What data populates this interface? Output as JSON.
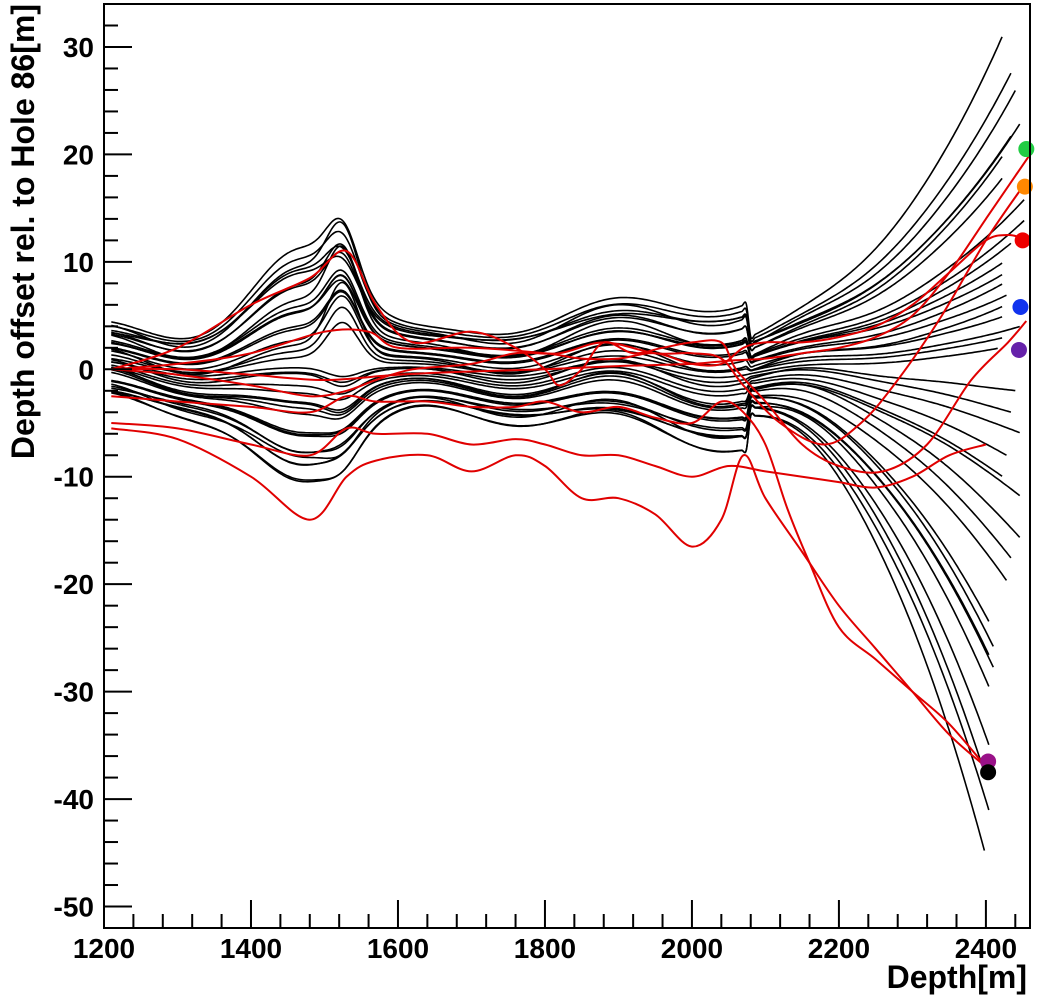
{
  "chart_data": {
    "type": "line",
    "title": "",
    "xlabel": "Depth[m]",
    "ylabel": "Depth offset rel. to Hole 86[m]",
    "xlim": [
      1200,
      2460
    ],
    "ylim": [
      -52,
      34
    ],
    "x_ticks": [
      1200,
      1400,
      1600,
      1800,
      2000,
      2200,
      2400
    ],
    "x_tick_labels": [
      "1200",
      "1400",
      "1600",
      "1800",
      "2000",
      "2200",
      "2400"
    ],
    "y_ticks": [
      30,
      20,
      10,
      0,
      -10,
      -20,
      -30,
      -40,
      -50
    ],
    "y_tick_labels": [
      "30",
      "20",
      "10",
      "0",
      "-10",
      "-20",
      "-30",
      "-40",
      "-50"
    ],
    "grid": false,
    "legend": "none",
    "curve_family": {
      "color": "#000000",
      "x_start": 1210,
      "end_offsets_top_group": [
        31,
        28,
        26,
        23,
        22,
        20,
        18,
        16,
        14,
        12,
        10,
        9,
        8,
        7,
        6,
        5,
        4,
        3,
        2
      ],
      "end_offsets_bottom_group": [
        -2,
        -4,
        -6,
        -8,
        -10,
        -12,
        -16,
        -18,
        -20,
        -24,
        -26,
        -27,
        -28,
        -30,
        -36,
        -38,
        -42,
        -46
      ]
    },
    "series": [
      {
        "color": "#e00000",
        "x": [
          1210,
          1300,
          1400,
          1480,
          1530,
          1570,
          1620,
          1700,
          1760,
          1800,
          1820,
          1850,
          1880,
          1920,
          1960,
          2000,
          2040,
          2060,
          2100,
          2150,
          2200,
          2260,
          2320,
          2380,
          2430,
          2455
        ],
        "y": [
          0,
          2,
          6,
          8.5,
          11,
          6,
          2.5,
          3.5,
          2,
          0,
          -1.5,
          0,
          2.5,
          1.5,
          2,
          2.5,
          2.5,
          0,
          -3,
          -7,
          -9,
          -9.5,
          -7,
          -1,
          2.5,
          4.5
        ]
      },
      {
        "color": "#e00000",
        "x": [
          1210,
          1300,
          1400,
          1500,
          1560,
          1600,
          1700,
          1800,
          1850,
          1900,
          1950,
          2000,
          2040,
          2070,
          2100,
          2150,
          2200,
          2250,
          2300,
          2350,
          2400,
          2430,
          2450
        ],
        "y": [
          0,
          0.5,
          1.5,
          3.5,
          3.5,
          2,
          2,
          1.5,
          1,
          1,
          1.5,
          0.5,
          0.5,
          2,
          2.5,
          2.5,
          3,
          4,
          6,
          9,
          12,
          12.5,
          12.2
        ]
      },
      {
        "color": "#e00000",
        "x": [
          1210,
          1300,
          1400,
          1500,
          1600,
          1700,
          1800,
          1900,
          2000,
          2050,
          2100,
          2150,
          2200,
          2250,
          2300,
          2350,
          2400,
          2440,
          2460
        ],
        "y": [
          0,
          0,
          -0.5,
          -1,
          -0.5,
          -0.2,
          0,
          0.3,
          0.5,
          0.8,
          1,
          1.5,
          2,
          3,
          5,
          9,
          14,
          18,
          20
        ]
      },
      {
        "color": "#e00000",
        "x": [
          1210,
          1300,
          1400,
          1480,
          1530,
          1570,
          1620,
          1700,
          1760,
          1820,
          1880,
          1950,
          2000,
          2040,
          2070,
          2120,
          2180,
          2230,
          2280,
          2340,
          2400,
          2450
        ],
        "y": [
          0,
          -0.5,
          -1.5,
          -2.5,
          -2,
          -1,
          0,
          0.5,
          1.5,
          1.5,
          2.5,
          1.5,
          1.5,
          1,
          -1.5,
          -5,
          -7,
          -5,
          -1,
          5,
          12,
          17
        ]
      },
      {
        "color": "#e00000",
        "x": [
          1210,
          1300,
          1400,
          1480,
          1530,
          1570,
          1640,
          1700,
          1760,
          1800,
          1850,
          1900,
          1950,
          2000,
          2040,
          2070,
          2100,
          2130,
          2160,
          2200,
          2250,
          2300,
          2350,
          2400
        ],
        "y": [
          -2.5,
          -3,
          -3.5,
          -4,
          -2.5,
          -3,
          -3,
          -3.5,
          -3.5,
          -3,
          -4,
          -3.5,
          -4.5,
          -5,
          -3,
          -4,
          -7,
          -13,
          -18,
          -24,
          -27,
          -30,
          -33,
          -37
        ]
      },
      {
        "color": "#e00000",
        "x": [
          1210,
          1300,
          1400,
          1480,
          1530,
          1570,
          1640,
          1700,
          1760,
          1800,
          1850,
          1900,
          1950,
          2000,
          2050,
          2100,
          2150,
          2200,
          2250,
          2300,
          2350,
          2400
        ],
        "y": [
          -5,
          -5.5,
          -7,
          -8,
          -5.5,
          -6,
          -6,
          -7,
          -6.5,
          -7,
          -8,
          -8,
          -9,
          -10,
          -9,
          -9.5,
          -10,
          -10.5,
          -11,
          -10,
          -8,
          -7
        ]
      },
      {
        "color": "#e00000",
        "x": [
          1210,
          1300,
          1400,
          1480,
          1530,
          1570,
          1640,
          1700,
          1760,
          1800,
          1850,
          1900,
          1950,
          2000,
          2040,
          2070,
          2100,
          2150,
          2200,
          2250,
          2300,
          2350,
          2400
        ],
        "y": [
          -5.5,
          -6.5,
          -10,
          -14,
          -10,
          -8.5,
          -8,
          -9.5,
          -8,
          -9,
          -12,
          -12,
          -13.5,
          -16.5,
          -14,
          -8,
          -12,
          -17,
          -22,
          -26,
          -30,
          -34,
          -37
        ]
      }
    ],
    "end_markers": [
      {
        "color": "#22cc44",
        "x": 2455,
        "y": 20.5
      },
      {
        "color": "#ff8800",
        "x": 2453,
        "y": 17
      },
      {
        "color": "#ee0000",
        "x": 2450,
        "y": 12
      },
      {
        "color": "#1133ee",
        "x": 2447,
        "y": 5.8
      },
      {
        "color": "#6622aa",
        "x": 2445,
        "y": 1.8
      },
      {
        "color": "#991188",
        "x": 2403,
        "y": -36.5
      },
      {
        "color": "#000000",
        "x": 2403,
        "y": -37.5
      }
    ]
  }
}
